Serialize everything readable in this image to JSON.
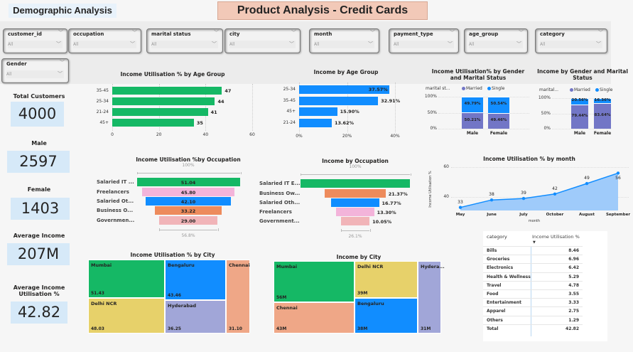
{
  "header": {
    "demographic": "Demographic Analysis",
    "product": "Product Analysis - Credit Cards"
  },
  "slicers": [
    {
      "label": "customer_id",
      "value": "All"
    },
    {
      "label": "occupation",
      "value": "All"
    },
    {
      "label": "marital status",
      "value": "All"
    },
    {
      "label": "city",
      "value": "All"
    },
    {
      "label": "month",
      "value": "All"
    },
    {
      "label": "payment_type",
      "value": "All"
    },
    {
      "label": "age_group",
      "value": "All"
    },
    {
      "label": "category",
      "value": "All"
    },
    {
      "label": "Gender",
      "value": "All"
    }
  ],
  "kpis": [
    {
      "label": "Total Customers",
      "value": "4000"
    },
    {
      "label": "Male",
      "value": "2597"
    },
    {
      "label": "Female",
      "value": "1403"
    },
    {
      "label": "Average Income",
      "value": "207M"
    },
    {
      "label": "Average Income Utilisation %",
      "value": "42.82"
    }
  ],
  "colors": {
    "green": "#15b865",
    "blue": "#118dff",
    "married": "#7276c6",
    "single": "#118dff",
    "area": "#9fcbfa"
  },
  "chart_data": [
    {
      "type": "bar",
      "orientation": "horizontal",
      "title": "Income Utilisation % by Age Group",
      "categories": [
        "35-45",
        "25-34",
        "21-24",
        "45+"
      ],
      "values": [
        47,
        44,
        41,
        35
      ],
      "data_labels": [
        "47",
        "44",
        "41",
        "35"
      ],
      "xlim": [
        0,
        60
      ],
      "xticks": [
        "0",
        "20",
        "40",
        "60"
      ],
      "grid": true,
      "color": "#15b865"
    },
    {
      "type": "bar",
      "orientation": "horizontal",
      "title": "Income by Age Group",
      "categories": [
        "25-34",
        "35-45",
        "45+",
        "21-24"
      ],
      "values": [
        37.57,
        32.91,
        15.9,
        13.62
      ],
      "data_labels": [
        "37.57%",
        "32.91%",
        "15.90%",
        "13.62%"
      ],
      "xlim": [
        0,
        40
      ],
      "xticks": [
        "0%",
        "20%",
        "40%"
      ],
      "grid": true,
      "color": "#118dff"
    },
    {
      "type": "bar",
      "stacked": "100%",
      "title": "Income Utilisation% by Gender and Marital Status",
      "legend_title": "marital st...",
      "legend": "top-left",
      "categories": [
        "Male",
        "Female"
      ],
      "yticks": [
        "0%",
        "50%",
        "100%"
      ],
      "series": [
        {
          "name": "Married",
          "values": [
            50.21,
            49.46
          ],
          "labels": [
            "50.21%",
            "49.46%"
          ],
          "color": "#7276c6"
        },
        {
          "name": "Single",
          "values": [
            49.79,
            50.54
          ],
          "labels": [
            "49.79%",
            "50.54%"
          ],
          "color": "#118dff"
        }
      ]
    },
    {
      "type": "bar",
      "stacked": "100%",
      "title": "Income by Gender and Marital Status",
      "legend_title": "marital...",
      "legend": "top-left",
      "categories": [
        "Male",
        "Female"
      ],
      "yticks": [
        "0%",
        "50%",
        "100%"
      ],
      "series": [
        {
          "name": "Married",
          "values": [
            79.44,
            83.64
          ],
          "labels": [
            "79.44%",
            "83.64%"
          ],
          "color": "#7276c6"
        },
        {
          "name": "Single",
          "values": [
            20.56,
            16.36
          ],
          "labels": [
            "20.56%",
            "16.36%"
          ],
          "color": "#118dff"
        }
      ]
    },
    {
      "type": "funnel",
      "title": "Income Utilisation %by Occupation",
      "categories": [
        "Salaried IT ...",
        "Freelancers",
        "Salaried Ot...",
        "Business O...",
        "Governmen..."
      ],
      "values": [
        51.04,
        45.8,
        42.1,
        33.22,
        29.0
      ],
      "data_labels": [
        "51.04",
        "45.80",
        "42.10",
        "33.22",
        "29.00"
      ],
      "colors": [
        "#15b865",
        "#f3b4da",
        "#118dff",
        "#ed8b5c",
        "#f1b4b8"
      ],
      "top_label": "100%",
      "bottom_label": "56.8%"
    },
    {
      "type": "funnel",
      "title": "Income by Occupation",
      "categories": [
        "Salaried IT E...",
        "Business Ow...",
        "Salaried Oth...",
        "Freelancers",
        "Government..."
      ],
      "values": [
        38.5,
        21.37,
        16.77,
        13.3,
        10.05
      ],
      "data_labels": [
        "",
        "21.37%",
        "16.77%",
        "13.30%",
        "10.05%"
      ],
      "colors": [
        "#15b865",
        "#ed8b5c",
        "#118dff",
        "#f3b4da",
        "#f1b4b8"
      ],
      "top_label": "100%",
      "bottom_label": "26.1%"
    },
    {
      "type": "area",
      "title": "Income Utilisation % by month",
      "xlabel": "month",
      "ylabel": "Income Utilisation %",
      "categories": [
        "May",
        "June",
        "July",
        "October",
        "August",
        "September"
      ],
      "values": [
        33,
        38,
        39,
        42,
        49,
        56
      ],
      "data_labels": [
        "33",
        "38",
        "39",
        "42",
        "49",
        "56"
      ],
      "yticks": [
        "40",
        "60"
      ],
      "grid": true,
      "color": "#118dff"
    },
    {
      "type": "treemap",
      "title": "Income Utilisation % by City",
      "items": [
        {
          "label": "Mumbai",
          "value": "51.43",
          "color": "#15b865"
        },
        {
          "label": "Delhi NCR",
          "value": "48.03",
          "color": "#e7d16a"
        },
        {
          "label": "Bengaluru",
          "value": "43.46",
          "color": "#118dff"
        },
        {
          "label": "Hyderabad",
          "value": "36.25",
          "color": "#a1a6d8"
        },
        {
          "label": "Chennai",
          "value": "31.10",
          "color": "#efa787"
        }
      ]
    },
    {
      "type": "treemap",
      "title": "Income by City",
      "items": [
        {
          "label": "Mumbai",
          "value": "56M",
          "color": "#15b865"
        },
        {
          "label": "Chennai",
          "value": "43M",
          "color": "#efa787"
        },
        {
          "label": "Delhi NCR",
          "value": "39M",
          "color": "#e7d16a"
        },
        {
          "label": "Bengaluru",
          "value": "38M",
          "color": "#118dff"
        },
        {
          "label": "Hydera...",
          "value": "31M",
          "color": "#a1a6d8"
        }
      ]
    },
    {
      "type": "table",
      "headers": [
        "category",
        "Income Utilisation %"
      ],
      "sort_indicator": "▼",
      "rows": [
        [
          "Bills",
          "8.46"
        ],
        [
          "Groceries",
          "6.96"
        ],
        [
          "Electronics",
          "6.42"
        ],
        [
          "Health & Wellness",
          "5.29"
        ],
        [
          "Travel",
          "4.78"
        ],
        [
          "Food",
          "3.55"
        ],
        [
          "Entertainment",
          "3.33"
        ],
        [
          "Apparel",
          "2.75"
        ],
        [
          "Others",
          "1.29"
        ]
      ],
      "total": [
        "Total",
        "42.82"
      ]
    }
  ]
}
